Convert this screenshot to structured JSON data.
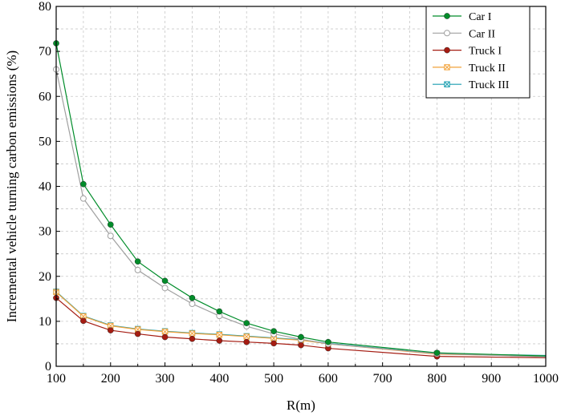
{
  "chart_data": {
    "type": "line",
    "xlabel": "R(m)",
    "ylabel": "Incremental vehicle turning carbon emissions (%)",
    "xlim": [
      100,
      1000
    ],
    "ylim": [
      0,
      80
    ],
    "x_ticks": [
      100,
      200,
      300,
      400,
      500,
      600,
      700,
      800,
      900,
      1000
    ],
    "y_ticks": [
      0,
      10,
      20,
      30,
      40,
      50,
      60,
      70,
      80
    ],
    "grid": true,
    "legend_position": "top-right",
    "series": [
      {
        "name": "Car I",
        "color": "#008c2a",
        "marker": "filled-circle-green",
        "x": [
          100,
          150,
          200,
          250,
          300,
          350,
          400,
          450,
          500,
          550,
          600,
          800,
          1000
        ],
        "y": [
          71.8,
          40.5,
          31.5,
          23.3,
          19.0,
          15.2,
          12.2,
          9.6,
          7.8,
          6.5,
          5.4,
          3.0,
          2.3
        ]
      },
      {
        "name": "Car II",
        "color": "#a0a0a0",
        "marker": "open-circle",
        "x": [
          100,
          150,
          200,
          250,
          300,
          350,
          400,
          450,
          500,
          550,
          600,
          800,
          1000
        ],
        "y": [
          66.0,
          37.3,
          29.0,
          21.4,
          17.4,
          13.9,
          11.2,
          8.9,
          7.2,
          6.0,
          5.0,
          2.8,
          2.1
        ]
      },
      {
        "name": "Truck I",
        "color": "#a51c12",
        "marker": "filled-circle-red",
        "x": [
          100,
          150,
          200,
          250,
          300,
          350,
          400,
          450,
          500,
          550,
          600,
          800,
          1000
        ],
        "y": [
          15.2,
          10.1,
          8.0,
          7.2,
          6.5,
          6.1,
          5.7,
          5.4,
          5.1,
          4.7,
          4.0,
          2.2,
          1.9
        ]
      },
      {
        "name": "Truck II",
        "color": "#f2a23a",
        "marker": "x-square-orange",
        "x": [
          100,
          150,
          200,
          250,
          300,
          350,
          400,
          450,
          500,
          550,
          600,
          800,
          1000
        ],
        "y": [
          16.5,
          11.1,
          9.0,
          8.2,
          7.7,
          7.3,
          7.0,
          6.6,
          6.2,
          5.8,
          5.0,
          2.7,
          2.3
        ]
      },
      {
        "name": "Truck III",
        "color": "#1a9eb0",
        "marker": "x-square-teal",
        "x": [
          100,
          150,
          200,
          250,
          300,
          350,
          400,
          450,
          500,
          550,
          600,
          800,
          1000
        ],
        "y": [
          16.6,
          11.2,
          9.1,
          8.3,
          7.8,
          7.4,
          7.1,
          6.7,
          6.3,
          5.9,
          5.1,
          2.8,
          2.4
        ]
      }
    ]
  }
}
